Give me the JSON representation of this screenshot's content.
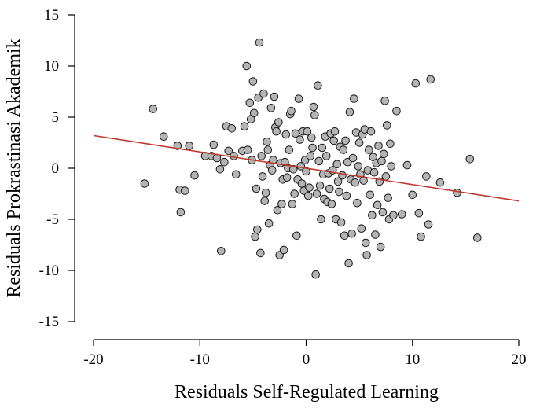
{
  "chart_data": {
    "type": "scatter",
    "xlabel": "Residuals Self-Regulated Learning",
    "ylabel": "Residuals Prokrastinasi Akademik",
    "xlim": [
      -20,
      20
    ],
    "ylim": [
      -15,
      15
    ],
    "xticks": [
      -20,
      -10,
      0,
      10,
      20
    ],
    "yticks": [
      15,
      10,
      5,
      0,
      -5,
      -10,
      -15
    ],
    "xtick_labels": [
      "-20",
      "-10",
      "0",
      "10",
      "20"
    ],
    "ytick_labels": [
      "15",
      "10",
      "5",
      "0",
      "-5",
      "-10",
      "-15"
    ],
    "grid": false,
    "colors": {
      "points": "#b4b4b4",
      "point_edge": "#1a1a1a",
      "fit_line": "#c0392b"
    },
    "fit_line": {
      "x": [
        -20,
        20
      ],
      "y": [
        3.2,
        -3.2
      ]
    },
    "points": [
      [
        -15.2,
        -1.5
      ],
      [
        -14.4,
        5.8
      ],
      [
        -13.4,
        3.1
      ],
      [
        -12.1,
        2.2
      ],
      [
        -11.9,
        -2.1
      ],
      [
        -11.8,
        -4.3
      ],
      [
        -11.4,
        -2.2
      ],
      [
        -11.0,
        2.2
      ],
      [
        -10.5,
        -0.7
      ],
      [
        -9.5,
        1.2
      ],
      [
        -8.9,
        1.2
      ],
      [
        -8.7,
        2.3
      ],
      [
        -8.4,
        1.0
      ],
      [
        -8.1,
        -0.1
      ],
      [
        -8.0,
        -8.1
      ],
      [
        -7.7,
        0.6
      ],
      [
        -7.5,
        4.1
      ],
      [
        -7.3,
        1.7
      ],
      [
        -7.0,
        3.9
      ],
      [
        -6.8,
        1.2
      ],
      [
        -6.6,
        -0.6
      ],
      [
        -6.0,
        1.7
      ],
      [
        -5.8,
        4.1
      ],
      [
        -5.6,
        10.0
      ],
      [
        -5.5,
        1.8
      ],
      [
        -5.3,
        6.4
      ],
      [
        -5.2,
        4.8
      ],
      [
        -5.1,
        0.8
      ],
      [
        -5.0,
        8.5
      ],
      [
        -4.9,
        5.4
      ],
      [
        -4.8,
        -6.7
      ],
      [
        -4.7,
        -2.0
      ],
      [
        -4.6,
        -6.0
      ],
      [
        -4.5,
        6.9
      ],
      [
        -4.4,
        12.3
      ],
      [
        -4.3,
        -8.3
      ],
      [
        -4.2,
        1.2
      ],
      [
        -4.1,
        -0.8
      ],
      [
        -4.0,
        7.3
      ],
      [
        -3.9,
        -3.2
      ],
      [
        -3.8,
        -2.4
      ],
      [
        -3.7,
        2.6
      ],
      [
        -3.6,
        1.8
      ],
      [
        -3.5,
        -5.4
      ],
      [
        -3.4,
        0.3
      ],
      [
        -3.3,
        5.9
      ],
      [
        -3.2,
        -0.2
      ],
      [
        -3.1,
        0.8
      ],
      [
        -3.0,
        7.0
      ],
      [
        -2.9,
        4.0
      ],
      [
        -2.8,
        3.6
      ],
      [
        -2.7,
        -4.1
      ],
      [
        -2.6,
        4.5
      ],
      [
        -2.5,
        -8.5
      ],
      [
        -2.4,
        0.5
      ],
      [
        -2.3,
        -3.5
      ],
      [
        -2.2,
        -1.1
      ],
      [
        -2.1,
        -8.0
      ],
      [
        -2.0,
        0.6
      ],
      [
        -1.9,
        3.3
      ],
      [
        -1.8,
        -0.9
      ],
      [
        -1.7,
        0.0
      ],
      [
        -1.6,
        1.8
      ],
      [
        -1.5,
        5.3
      ],
      [
        -1.4,
        5.6
      ],
      [
        -1.3,
        -3.5
      ],
      [
        -1.2,
        -0.1
      ],
      [
        -1.1,
        -2.5
      ],
      [
        -1.0,
        3.4
      ],
      [
        -0.9,
        -6.6
      ],
      [
        -0.8,
        -1.1
      ],
      [
        -0.7,
        6.8
      ],
      [
        -0.6,
        2.8
      ],
      [
        -0.5,
        0.2
      ],
      [
        -0.4,
        -1.5
      ],
      [
        -0.3,
        3.6
      ],
      [
        -0.2,
        -2.2
      ],
      [
        -0.1,
        0.8
      ],
      [
        0.0,
        -0.3
      ],
      [
        0.1,
        3.6
      ],
      [
        0.2,
        -2.7
      ],
      [
        0.3,
        -1.9
      ],
      [
        0.4,
        1.2
      ],
      [
        0.5,
        3.0
      ],
      [
        0.6,
        2.0
      ],
      [
        0.7,
        6.0
      ],
      [
        0.8,
        5.2
      ],
      [
        0.9,
        -10.4
      ],
      [
        1.0,
        -2.5
      ],
      [
        1.1,
        8.1
      ],
      [
        1.2,
        0.7
      ],
      [
        1.3,
        -1.7
      ],
      [
        1.4,
        -5.0
      ],
      [
        1.5,
        2.0
      ],
      [
        1.6,
        -0.6
      ],
      [
        1.7,
        -3.0
      ],
      [
        1.8,
        3.1
      ],
      [
        1.9,
        1.2
      ],
      [
        2.0,
        -3.3
      ],
      [
        2.1,
        -0.5
      ],
      [
        2.2,
        -2.0
      ],
      [
        2.3,
        3.4
      ],
      [
        2.4,
        -3.5
      ],
      [
        2.5,
        -0.2
      ],
      [
        2.6,
        2.7
      ],
      [
        2.7,
        3.6
      ],
      [
        2.8,
        -5.0
      ],
      [
        2.9,
        0.4
      ],
      [
        3.0,
        -1.3
      ],
      [
        3.1,
        -2.3
      ],
      [
        3.2,
        2.1
      ],
      [
        3.3,
        -5.3
      ],
      [
        3.4,
        -0.7
      ],
      [
        3.5,
        1.8
      ],
      [
        3.6,
        -6.6
      ],
      [
        3.7,
        2.7
      ],
      [
        3.8,
        -2.7
      ],
      [
        3.9,
        0.6
      ],
      [
        4.0,
        -9.3
      ],
      [
        4.1,
        5.5
      ],
      [
        4.2,
        -1.1
      ],
      [
        4.3,
        -6.4
      ],
      [
        4.4,
        1.0
      ],
      [
        4.5,
        6.8
      ],
      [
        4.6,
        -1.4
      ],
      [
        4.7,
        3.5
      ],
      [
        4.8,
        -3.4
      ],
      [
        4.9,
        0.2
      ],
      [
        5.0,
        2.5
      ],
      [
        5.1,
        -0.6
      ],
      [
        5.2,
        -5.9
      ],
      [
        5.3,
        3.3
      ],
      [
        5.4,
        -1.2
      ],
      [
        5.5,
        3.8
      ],
      [
        5.6,
        -7.3
      ],
      [
        5.7,
        -8.5
      ],
      [
        5.8,
        -0.2
      ],
      [
        5.9,
        1.8
      ],
      [
        6.0,
        -2.6
      ],
      [
        6.1,
        3.6
      ],
      [
        6.2,
        -4.6
      ],
      [
        6.3,
        1.1
      ],
      [
        6.4,
        -0.4
      ],
      [
        6.5,
        -6.5
      ],
      [
        6.6,
        0.5
      ],
      [
        6.7,
        -3.6
      ],
      [
        6.8,
        2.2
      ],
      [
        6.9,
        -1.3
      ],
      [
        7.0,
        -7.7
      ],
      [
        7.1,
        0.7
      ],
      [
        7.2,
        -4.3
      ],
      [
        7.3,
        1.4
      ],
      [
        7.4,
        6.6
      ],
      [
        7.5,
        -0.8
      ],
      [
        7.6,
        4.2
      ],
      [
        7.7,
        -2.9
      ],
      [
        7.8,
        -5.0
      ],
      [
        7.9,
        2.4
      ],
      [
        8.0,
        0.2
      ],
      [
        8.2,
        -4.6
      ],
      [
        8.5,
        5.6
      ],
      [
        9.0,
        -4.5
      ],
      [
        9.5,
        0.3
      ],
      [
        10.0,
        -2.6
      ],
      [
        10.3,
        8.3
      ],
      [
        10.6,
        -4.4
      ],
      [
        10.8,
        -6.7
      ],
      [
        11.3,
        -0.8
      ],
      [
        11.5,
        -5.5
      ],
      [
        11.7,
        8.7
      ],
      [
        12.6,
        -1.4
      ],
      [
        14.2,
        -2.4
      ],
      [
        15.4,
        0.9
      ],
      [
        16.1,
        -6.8
      ]
    ]
  }
}
